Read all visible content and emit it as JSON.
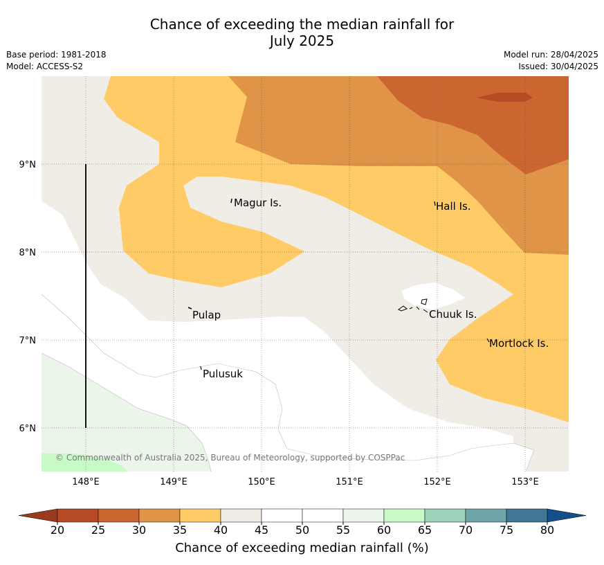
{
  "title": {
    "line1": "Chance of exceeding the median rainfall for",
    "line2": "July 2025"
  },
  "meta": {
    "base_period": "Base period: 1981-2018",
    "model": "Model: ACCESS-S2",
    "model_run": "Model run: 28/04/2025",
    "issued": "Issued: 30/04/2025"
  },
  "map": {
    "x_ticks": [
      "148°E",
      "149°E",
      "150°E",
      "151°E",
      "152°E",
      "153°E"
    ],
    "y_ticks": [
      "9°N",
      "8°N",
      "7°N",
      "6°N"
    ],
    "places": [
      "Magur Is.",
      "Hall Is.",
      "Pulap",
      "Chuuk Is.",
      "Mortlock Is.",
      "Pulusuk"
    ],
    "credit": "© Commonwealth of Australia 2025, Bureau of Meteorology, supported by COSPPac"
  },
  "colorbar": {
    "ticks": [
      "20",
      "25",
      "30",
      "35",
      "40",
      "45",
      "50",
      "55",
      "60",
      "65",
      "70",
      "75",
      "80"
    ],
    "colors": [
      "#b54a25",
      "#cc6630",
      "#e09448",
      "#fecb66",
      "#f0ece6",
      "#ffffff",
      "#ffffff",
      "#ebf5ea",
      "#c8fac8",
      "#9dd1b9",
      "#6ea6aa",
      "#3f7794"
    ],
    "under_color": "#9a3a1e",
    "over_color": "#134f8a",
    "title": "Chance of exceeding median rainfall (%)"
  }
}
